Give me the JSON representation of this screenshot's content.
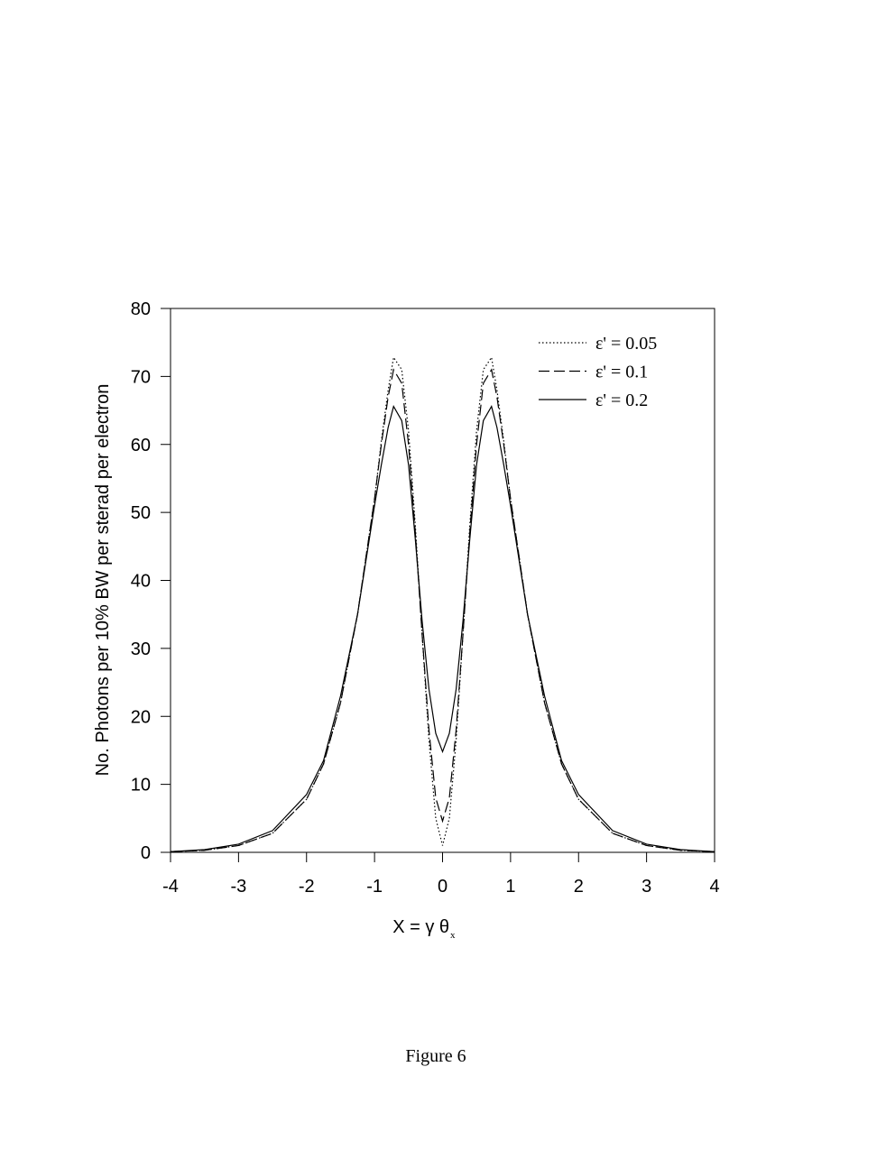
{
  "chart_data": {
    "type": "line",
    "xlabel": "X =  γ θ",
    "xlabel_subscript": "x",
    "ylabel": "No. Photons per 10% BW per sterad per electron",
    "caption": "Figure 6",
    "x": [
      -4,
      -3.5,
      -3,
      -2.5,
      -2,
      -1.75,
      -1.5,
      -1.25,
      -1,
      -0.9,
      -0.8,
      -0.72,
      -0.6,
      -0.5,
      -0.4,
      -0.3,
      -0.2,
      -0.1,
      0,
      0.1,
      0.2,
      0.3,
      0.4,
      0.5,
      0.6,
      0.72,
      0.8,
      0.9,
      1,
      1.25,
      1.5,
      1.75,
      2,
      2.5,
      3,
      3.5,
      4
    ],
    "series": [
      {
        "name": "ε' = 0.05",
        "color": "#000000",
        "dash": "dotted",
        "values": [
          0.1,
          0.3,
          1.0,
          2.8,
          7.8,
          13,
          22,
          35,
          52,
          60.5,
          68,
          72.8,
          71,
          62,
          48,
          32,
          16.5,
          5,
          1,
          5,
          16.5,
          32,
          48,
          62,
          71,
          72.8,
          68,
          60.5,
          52,
          35,
          22,
          13,
          7.8,
          2.8,
          1.0,
          0.3,
          0.1
        ]
      },
      {
        "name": "ε' = 0.1",
        "color": "#000000",
        "dash": "dashed",
        "values": [
          0.1,
          0.3,
          1.0,
          2.8,
          7.8,
          13,
          22,
          35,
          52,
          60,
          67,
          71,
          69,
          60,
          47,
          32,
          18,
          8,
          4.6,
          8,
          18,
          32,
          47,
          60,
          69,
          71,
          67,
          60,
          52,
          35,
          22,
          13,
          7.8,
          2.8,
          1.0,
          0.3,
          0.1
        ]
      },
      {
        "name": "ε' = 0.2",
        "color": "#000000",
        "dash": "solid",
        "values": [
          0.1,
          0.4,
          1.2,
          3.2,
          8.5,
          13.5,
          23,
          35,
          51,
          57,
          62.5,
          65.6,
          63.5,
          57,
          46,
          34,
          24,
          17.5,
          14.8,
          17.5,
          24,
          34,
          46,
          57,
          63.5,
          65.6,
          62.5,
          57,
          51,
          35,
          23,
          13.5,
          8.5,
          3.2,
          1.2,
          0.4,
          0.1
        ]
      }
    ],
    "xlim": [
      -4,
      4
    ],
    "xticks": [
      -4,
      -3,
      -2,
      -1,
      0,
      1,
      2,
      3,
      4
    ],
    "ylim": [
      0,
      80
    ],
    "yticks": [
      0,
      10,
      20,
      30,
      40,
      50,
      60,
      70,
      80
    ],
    "legend": "upper right",
    "grid": false
  }
}
